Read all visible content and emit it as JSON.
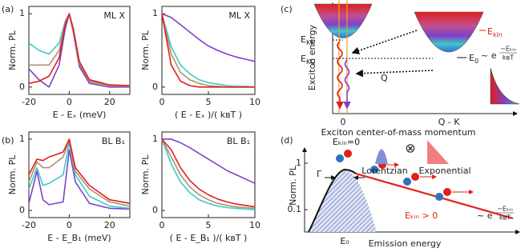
{
  "panel_labels": [
    "(a)",
    "(b)",
    "(c)",
    "(d)"
  ],
  "chart_data": [
    {
      "type": "line",
      "label": "ML X",
      "xlabel": "E - Eₓ (meV)",
      "ylabel": "Norm. PL",
      "xlim": [
        -20,
        30
      ],
      "ylim": [
        -0.1,
        1.1
      ],
      "xticks": [
        -20,
        0,
        20
      ],
      "yticks": [
        0,
        1
      ],
      "x": [
        -20,
        -15,
        -10,
        -5,
        -2,
        0,
        2,
        5,
        10,
        20,
        30
      ],
      "series": [
        {
          "color": "#3fc8c8",
          "values": [
            0.6,
            0.5,
            0.45,
            0.6,
            0.9,
            1,
            0.78,
            0.3,
            0.07,
            0.02,
            0.01
          ]
        },
        {
          "color": "#8040c8",
          "values": [
            0.25,
            0.1,
            0.0,
            0.3,
            0.8,
            1,
            0.75,
            0.28,
            0.05,
            0.0,
            0.0
          ]
        },
        {
          "color": "#b09070",
          "values": [
            0.3,
            0.3,
            0.3,
            0.5,
            0.88,
            1,
            0.78,
            0.32,
            0.08,
            0.02,
            0.01
          ]
        },
        {
          "color": "#e0201b",
          "values": [
            0.05,
            0.08,
            0.15,
            0.4,
            0.85,
            1,
            0.8,
            0.35,
            0.1,
            0.03,
            0.02
          ]
        }
      ]
    },
    {
      "type": "line",
      "label": "ML X",
      "xlabel": "( E - Eₓ )/( kʙT )",
      "ylabel": "Norm. PL",
      "xlim": [
        0,
        10
      ],
      "ylim": [
        -0.1,
        1.1
      ],
      "xticks": [
        0,
        5,
        10
      ],
      "yticks": [
        0,
        1
      ],
      "x": [
        0,
        1,
        2,
        3,
        4,
        5,
        6,
        7,
        8,
        9,
        10
      ],
      "series": [
        {
          "color": "#8040c8",
          "values": [
            1,
            0.95,
            0.85,
            0.75,
            0.65,
            0.56,
            0.5,
            0.45,
            0.41,
            0.38,
            0.35
          ]
        },
        {
          "color": "#3fc8c8",
          "values": [
            1,
            0.55,
            0.3,
            0.18,
            0.1,
            0.06,
            0.04,
            0.02,
            0.01,
            0.01,
            0
          ]
        },
        {
          "color": "#b09070",
          "values": [
            1,
            0.45,
            0.2,
            0.1,
            0.05,
            0.02,
            0.01,
            0,
            0,
            0,
            0
          ]
        },
        {
          "color": "#e0201b",
          "values": [
            1,
            0.3,
            0.08,
            0.02,
            0,
            0,
            0,
            0,
            0,
            0,
            0
          ]
        }
      ]
    },
    {
      "type": "line",
      "label": "BL B₁",
      "xlabel": "E - E_B₁ (meV)",
      "ylabel": "Norm. PL",
      "xlim": [
        -20,
        30
      ],
      "ylim": [
        -0.1,
        1.1
      ],
      "xticks": [
        -20,
        0,
        20
      ],
      "yticks": [
        0,
        1
      ],
      "x": [
        -20,
        -16,
        -13,
        -10,
        -3,
        0,
        3,
        10,
        20,
        30
      ],
      "series": [
        {
          "color": "#8040c8",
          "values": [
            0.1,
            0.55,
            0.15,
            0.08,
            0.12,
            0.85,
            0.4,
            0.1,
            0.03,
            0.02
          ]
        },
        {
          "color": "#3fc8c8",
          "values": [
            0.3,
            0.6,
            0.35,
            0.38,
            0.5,
            0.95,
            0.5,
            0.2,
            0.06,
            0.03
          ]
        },
        {
          "color": "#b09070",
          "values": [
            0.4,
            0.68,
            0.6,
            0.6,
            0.75,
            0.98,
            0.55,
            0.3,
            0.12,
            0.06
          ]
        },
        {
          "color": "#e0201b",
          "values": [
            0.5,
            0.72,
            0.7,
            0.75,
            0.82,
            1,
            0.6,
            0.35,
            0.15,
            0.1
          ]
        }
      ]
    },
    {
      "type": "line",
      "label": "BL B₁",
      "xlabel": "( E - E_B₁ )/( kʙT )",
      "ylabel": "Norm. PL",
      "xlim": [
        0,
        10
      ],
      "ylim": [
        -0.1,
        1.1
      ],
      "xticks": [
        0,
        5,
        10
      ],
      "yticks": [
        0,
        1
      ],
      "x": [
        0,
        1,
        2,
        3,
        4,
        5,
        6,
        7,
        8,
        9,
        10
      ],
      "series": [
        {
          "color": "#8040c8",
          "values": [
            1,
            1,
            0.95,
            0.88,
            0.8,
            0.72,
            0.64,
            0.56,
            0.5,
            0.44,
            0.38
          ]
        },
        {
          "color": "#3fc8c8",
          "values": [
            1,
            0.65,
            0.4,
            0.25,
            0.15,
            0.1,
            0.06,
            0.04,
            0.03,
            0.02,
            0.01
          ]
        },
        {
          "color": "#b09070",
          "values": [
            1,
            0.75,
            0.5,
            0.33,
            0.22,
            0.15,
            0.1,
            0.07,
            0.05,
            0.04,
            0.03
          ]
        },
        {
          "color": "#e0201b",
          "values": [
            1,
            0.85,
            0.6,
            0.42,
            0.3,
            0.22,
            0.16,
            0.12,
            0.09,
            0.07,
            0.05
          ]
        }
      ]
    }
  ],
  "panel_c": {
    "ylabel": "Exciton energy",
    "xlabel": "Exciton center-of-mass momentum",
    "x_left": "0",
    "x_right": "Q - K",
    "q": "Q",
    "e_kk": {
      "base": "E",
      "sub": "KK"
    },
    "e_kq": {
      "base": "E",
      "sub": "KQ"
    },
    "e_kin": {
      "base": "E",
      "sub": "kin"
    },
    "e_0": {
      "base": "E",
      "sub": "0"
    },
    "exp": {
      "prefix": "~ e",
      "num": "−Eₖᵢₙ",
      "den": "kʙT"
    }
  },
  "panel_d": {
    "ylabel": "Norm. PL",
    "xlabel": "Emission energy",
    "tick_top": "1",
    "tick_bottom": "0.1",
    "e0": "E₀",
    "gamma": "Γ",
    "ekin0": "Eₖᵢₙ=0",
    "ekin_pos": "Eₖᵢₙ > 0",
    "lorentzian": "Lorentzian",
    "conv": "⊗",
    "exponential": "Exponential",
    "exp": {
      "prefix": "~ e",
      "num": "−Eₖᵢₙ",
      "den": "kʙT"
    }
  }
}
